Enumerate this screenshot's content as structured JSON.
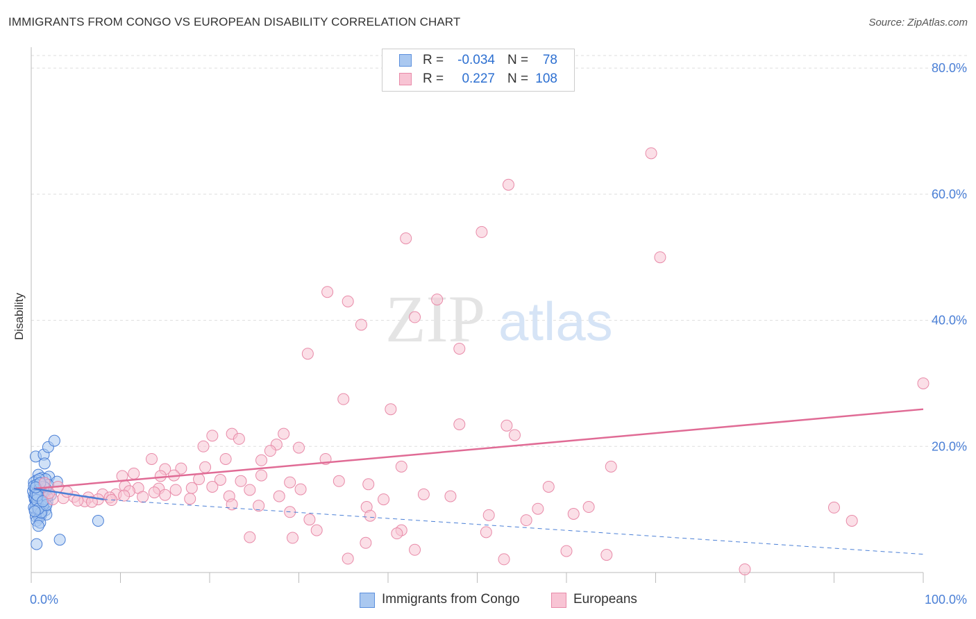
{
  "title": "IMMIGRANTS FROM CONGO VS EUROPEAN DISABILITY CORRELATION CHART",
  "source": "Source: ZipAtlas.com",
  "watermark": {
    "zip": "ZIP",
    "atlas": "atlas"
  },
  "legend": {
    "rows": [
      {
        "r_label": "R =",
        "r_value": "-0.034",
        "n_label": "N =",
        "n_value": "78",
        "color": "#aac8f0",
        "border": "#5b8fdd"
      },
      {
        "r_label": "R =",
        "r_value": "0.227",
        "n_label": "N =",
        "n_value": "108",
        "color": "#f8c4d4",
        "border": "#e88aa8"
      }
    ]
  },
  "bottom_legend": [
    {
      "label": "Immigrants from Congo",
      "color": "#aac8f0",
      "border": "#5b8fdd"
    },
    {
      "label": "Europeans",
      "color": "#f8c4d4",
      "border": "#e88aa8"
    }
  ],
  "chart_data": {
    "type": "scatter",
    "title": "IMMIGRANTS FROM CONGO VS EUROPEAN DISABILITY CORRELATION CHART",
    "xlabel": "",
    "ylabel": "Disability",
    "xlim": [
      0,
      100
    ],
    "ylim": [
      0,
      82
    ],
    "x_tick_labels": [
      "0.0%",
      "100.0%"
    ],
    "y_ticks": [
      20,
      40,
      60,
      80
    ],
    "y_tick_labels": [
      "20.0%",
      "40.0%",
      "60.0%",
      "80.0%"
    ],
    "grid": true,
    "legend_position": "top-center",
    "colors": {
      "congo": "#4a7fd6",
      "congo_fill": "#aac8f0",
      "europeans": "#e06b95",
      "europeans_fill": "#f8c4d4",
      "axis_text": "#4a7fd6"
    },
    "series": [
      {
        "name": "Immigrants from Congo",
        "R": -0.034,
        "N": 78,
        "trend_solid": [
          [
            0.3,
            13.3
          ],
          [
            8.1,
            11.6
          ]
        ],
        "trend_dashed": [
          [
            8.1,
            11.6
          ],
          [
            100,
            2.9
          ]
        ],
        "points": [
          [
            0.5,
            18.4
          ],
          [
            1.4,
            18.7
          ],
          [
            1.5,
            17.3
          ],
          [
            1.9,
            19.9
          ],
          [
            2.6,
            20.9
          ],
          [
            0.8,
            15.5
          ],
          [
            1.2,
            15.0
          ],
          [
            2.0,
            15.2
          ],
          [
            2.9,
            14.4
          ],
          [
            1.6,
            14.8
          ],
          [
            0.6,
            14.6
          ],
          [
            0.9,
            14.1
          ],
          [
            1.1,
            13.6
          ],
          [
            0.4,
            13.3
          ],
          [
            1.3,
            13.1
          ],
          [
            0.7,
            12.8
          ],
          [
            1.0,
            12.6
          ],
          [
            1.5,
            12.4
          ],
          [
            0.3,
            12.2
          ],
          [
            0.8,
            12.0
          ],
          [
            1.2,
            11.8
          ],
          [
            1.6,
            11.5
          ],
          [
            0.5,
            11.3
          ],
          [
            0.9,
            11.1
          ],
          [
            1.3,
            10.9
          ],
          [
            0.6,
            10.6
          ],
          [
            1.0,
            10.4
          ],
          [
            1.4,
            10.2
          ],
          [
            0.4,
            10.0
          ],
          [
            0.8,
            9.8
          ],
          [
            1.2,
            9.6
          ],
          [
            1.6,
            9.9
          ],
          [
            0.7,
            9.3
          ],
          [
            1.1,
            9.1
          ],
          [
            0.5,
            8.9
          ],
          [
            0.9,
            8.7
          ],
          [
            1.7,
            9.2
          ],
          [
            0.6,
            8.2
          ],
          [
            1.0,
            7.9
          ],
          [
            0.8,
            7.4
          ],
          [
            0.6,
            4.5
          ],
          [
            3.2,
            5.2
          ],
          [
            7.5,
            8.2
          ],
          [
            1.9,
            13.9
          ],
          [
            0.3,
            14.3
          ],
          [
            2.2,
            12.3
          ],
          [
            0.4,
            11.6
          ],
          [
            0.7,
            13.0
          ],
          [
            1.8,
            11.2
          ],
          [
            0.2,
            12.9
          ],
          [
            0.9,
            14.8
          ],
          [
            1.4,
            12.2
          ],
          [
            0.5,
            10.8
          ],
          [
            1.1,
            11.4
          ],
          [
            0.3,
            13.7
          ],
          [
            1.6,
            13.4
          ],
          [
            0.8,
            12.5
          ],
          [
            1.3,
            10.6
          ],
          [
            0.6,
            13.9
          ],
          [
            1.0,
            12.1
          ],
          [
            0.4,
            11.9
          ],
          [
            1.5,
            11.7
          ],
          [
            0.7,
            11.0
          ],
          [
            1.2,
            12.7
          ],
          [
            0.9,
            13.2
          ],
          [
            0.5,
            12.4
          ],
          [
            1.8,
            12.0
          ],
          [
            0.3,
            10.3
          ],
          [
            1.1,
            9.5
          ],
          [
            0.6,
            11.5
          ],
          [
            1.4,
            13.6
          ],
          [
            0.8,
            10.1
          ],
          [
            1.7,
            10.7
          ],
          [
            0.4,
            9.7
          ],
          [
            1.0,
            14.2
          ],
          [
            0.7,
            12.2
          ],
          [
            1.3,
            11.3
          ],
          [
            0.5,
            13.5
          ]
        ]
      },
      {
        "name": "Europeans",
        "R": 0.227,
        "N": 108,
        "trend_solid": [
          [
            0.3,
            13.3
          ],
          [
            100,
            25.9
          ]
        ],
        "points": [
          [
            69.5,
            66.5
          ],
          [
            53.5,
            61.5
          ],
          [
            42.0,
            53.0
          ],
          [
            50.5,
            54.0
          ],
          [
            70.5,
            50.0
          ],
          [
            33.2,
            44.5
          ],
          [
            35.5,
            43.0
          ],
          [
            45.5,
            43.3
          ],
          [
            37.0,
            39.3
          ],
          [
            43.0,
            40.5
          ],
          [
            31.0,
            34.7
          ],
          [
            48.0,
            35.5
          ],
          [
            100,
            30.0
          ],
          [
            35.0,
            27.5
          ],
          [
            40.3,
            25.9
          ],
          [
            48.0,
            23.5
          ],
          [
            53.3,
            23.3
          ],
          [
            54.2,
            21.8
          ],
          [
            22.5,
            22.0
          ],
          [
            20.3,
            21.7
          ],
          [
            23.3,
            21.2
          ],
          [
            28.3,
            22.0
          ],
          [
            27.5,
            20.3
          ],
          [
            19.3,
            20.0
          ],
          [
            30.0,
            19.8
          ],
          [
            26.8,
            19.3
          ],
          [
            25.8,
            17.8
          ],
          [
            13.5,
            18.0
          ],
          [
            21.8,
            18.0
          ],
          [
            33.0,
            18.0
          ],
          [
            15.0,
            16.4
          ],
          [
            11.5,
            15.7
          ],
          [
            16.8,
            16.5
          ],
          [
            19.5,
            16.7
          ],
          [
            41.5,
            16.8
          ],
          [
            65.0,
            16.8
          ],
          [
            25.8,
            15.4
          ],
          [
            10.2,
            15.3
          ],
          [
            14.5,
            15.3
          ],
          [
            16.0,
            15.4
          ],
          [
            18.8,
            14.8
          ],
          [
            21.2,
            14.7
          ],
          [
            23.5,
            14.5
          ],
          [
            29.0,
            14.3
          ],
          [
            34.5,
            14.5
          ],
          [
            37.8,
            14.0
          ],
          [
            10.5,
            13.7
          ],
          [
            12.0,
            13.4
          ],
          [
            14.3,
            13.3
          ],
          [
            16.2,
            13.1
          ],
          [
            18.0,
            13.4
          ],
          [
            20.3,
            13.6
          ],
          [
            24.5,
            13.1
          ],
          [
            30.2,
            13.2
          ],
          [
            13.8,
            12.7
          ],
          [
            11.0,
            12.9
          ],
          [
            9.5,
            12.4
          ],
          [
            8.0,
            12.4
          ],
          [
            6.4,
            11.9
          ],
          [
            4.8,
            12.0
          ],
          [
            3.6,
            11.8
          ],
          [
            2.4,
            11.6
          ],
          [
            6.0,
            11.3
          ],
          [
            7.5,
            11.6
          ],
          [
            8.8,
            11.9
          ],
          [
            10.4,
            12.2
          ],
          [
            12.5,
            12.0
          ],
          [
            15.0,
            12.3
          ],
          [
            17.8,
            11.7
          ],
          [
            22.2,
            12.1
          ],
          [
            27.8,
            12.1
          ],
          [
            44.0,
            12.4
          ],
          [
            47.0,
            12.1
          ],
          [
            39.5,
            11.6
          ],
          [
            58.0,
            13.6
          ],
          [
            22.5,
            10.8
          ],
          [
            25.5,
            10.6
          ],
          [
            37.6,
            10.4
          ],
          [
            56.8,
            10.1
          ],
          [
            62.5,
            10.4
          ],
          [
            29.0,
            9.6
          ],
          [
            38.0,
            9.0
          ],
          [
            51.3,
            9.1
          ],
          [
            60.8,
            9.3
          ],
          [
            90.0,
            10.3
          ],
          [
            31.2,
            8.4
          ],
          [
            55.5,
            8.3
          ],
          [
            92.0,
            8.2
          ],
          [
            32.0,
            6.7
          ],
          [
            41.5,
            6.7
          ],
          [
            41.0,
            6.2
          ],
          [
            51.0,
            6.4
          ],
          [
            24.5,
            5.6
          ],
          [
            29.3,
            5.5
          ],
          [
            37.5,
            4.7
          ],
          [
            43.0,
            3.6
          ],
          [
            60.0,
            3.4
          ],
          [
            35.5,
            2.2
          ],
          [
            53.0,
            2.1
          ],
          [
            64.5,
            2.8
          ],
          [
            80.0,
            0.5
          ],
          [
            4.0,
            12.8
          ],
          [
            5.2,
            11.4
          ],
          [
            3.0,
            13.6
          ],
          [
            2.0,
            12.6
          ],
          [
            1.5,
            14.2
          ],
          [
            6.8,
            11.2
          ],
          [
            9.0,
            11.5
          ]
        ]
      }
    ]
  }
}
